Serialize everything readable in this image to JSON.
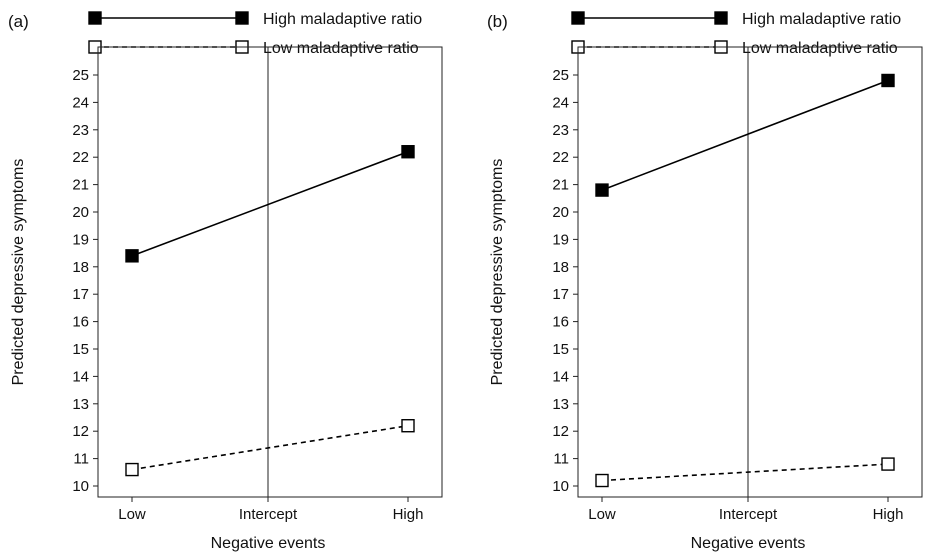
{
  "chart_data": [
    {
      "type": "line",
      "panel_label": "(a)",
      "categories": [
        "Low",
        "Intercept",
        "High"
      ],
      "xlabel": "Negative events",
      "ylabel": "Predicted depressive symptoms",
      "ylim": [
        10,
        25
      ],
      "yticks": [
        10,
        11,
        12,
        13,
        14,
        15,
        16,
        17,
        18,
        19,
        20,
        21,
        22,
        23,
        24,
        25
      ],
      "vertical_line_at": "Intercept",
      "grid": false,
      "legend_position": "top",
      "series": [
        {
          "name": "High maladaptive ratio",
          "style": "solid",
          "marker": "filled-square",
          "color": "#000000",
          "x": [
            "Low",
            "High"
          ],
          "values": [
            18.4,
            22.2
          ]
        },
        {
          "name": "Low maladaptive ratio",
          "style": "dashed",
          "marker": "open-square",
          "color": "#000000",
          "x": [
            "Low",
            "High"
          ],
          "values": [
            10.6,
            12.2
          ]
        }
      ]
    },
    {
      "type": "line",
      "panel_label": "(b)",
      "categories": [
        "Low",
        "Intercept",
        "High"
      ],
      "xlabel": "Negative events",
      "ylabel": "Predicted depressive symptoms",
      "ylim": [
        10,
        25
      ],
      "yticks": [
        10,
        11,
        12,
        13,
        14,
        15,
        16,
        17,
        18,
        19,
        20,
        21,
        22,
        23,
        24,
        25
      ],
      "vertical_line_at": "Intercept",
      "grid": false,
      "legend_position": "top",
      "series": [
        {
          "name": "High maladaptive ratio",
          "style": "solid",
          "marker": "filled-square",
          "color": "#000000",
          "x": [
            "Low",
            "High"
          ],
          "values": [
            20.8,
            24.8
          ]
        },
        {
          "name": "Low maladaptive ratio",
          "style": "dashed",
          "marker": "open-square",
          "color": "#000000",
          "x": [
            "Low",
            "High"
          ],
          "values": [
            10.2,
            10.8
          ]
        }
      ]
    }
  ]
}
